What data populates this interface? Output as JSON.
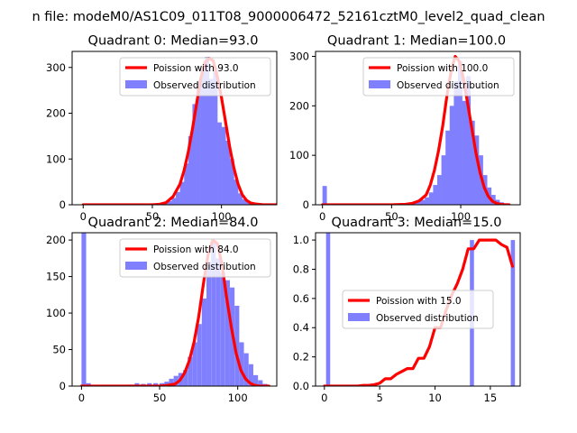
{
  "figure": {
    "suptitle": "n file: modeM0/AS1C09_011T08_9000006472_52161cztM0_level2_quad_clean"
  },
  "colors": {
    "poisson": "#ff0000",
    "observed": "#8080ff",
    "axes": "#000000"
  },
  "chart_data": [
    {
      "type": "bar",
      "title": "Quadrant 0: Median=93.0",
      "xlim": [
        -8,
        140
      ],
      "ylim": [
        0,
        335
      ],
      "xticks": [
        0,
        50,
        100
      ],
      "yticks": [
        0,
        100,
        200,
        300
      ],
      "legend": [
        "Poission with 93.0",
        "Observed distribution"
      ],
      "legend_placement": "top-right",
      "hist_bin_width": 3,
      "hist": {
        "x": [
          40,
          43,
          46,
          49,
          52,
          55,
          58,
          61,
          64,
          67,
          70,
          73,
          76,
          79,
          82,
          85,
          88,
          91,
          94,
          97,
          100,
          103,
          106,
          109,
          112,
          115,
          118,
          121,
          124
        ],
        "y": [
          1,
          1,
          1,
          1,
          2,
          3,
          5,
          8,
          15,
          28,
          50,
          90,
          150,
          220,
          270,
          300,
          323,
          275,
          300,
          180,
          170,
          140,
          100,
          55,
          25,
          12,
          6,
          3,
          1
        ]
      },
      "series": [
        {
          "name": "Poission with 93.0",
          "x": [
            0,
            40,
            50,
            55,
            60,
            65,
            70,
            73,
            76,
            79,
            82,
            85,
            88,
            91,
            94,
            97,
            100,
            103,
            106,
            109,
            112,
            115,
            118,
            121,
            124,
            127,
            130,
            140
          ],
          "y": [
            0,
            0,
            0,
            1,
            5,
            18,
            45,
            75,
            115,
            165,
            220,
            275,
            310,
            320,
            315,
            280,
            235,
            180,
            125,
            80,
            45,
            22,
            10,
            4,
            2,
            1,
            0,
            0
          ]
        }
      ]
    },
    {
      "type": "bar",
      "title": "Quadrant 1: Median=100.0",
      "xlim": [
        -5,
        143
      ],
      "ylim": [
        0,
        310
      ],
      "xticks": [
        0,
        50,
        100
      ],
      "yticks": [
        0,
        100,
        200,
        300
      ],
      "legend": [
        "Poission with 100.0",
        "Observed distribution"
      ],
      "legend_placement": "top-right",
      "hist_bin_width": 3,
      "hist": {
        "x": [
          0,
          50,
          53,
          56,
          59,
          62,
          65,
          68,
          71,
          74,
          77,
          80,
          83,
          86,
          89,
          92,
          95,
          98,
          101,
          104,
          107,
          110,
          113,
          116,
          119,
          122,
          125,
          128,
          131,
          134
        ],
        "y": [
          38,
          1,
          1,
          1,
          2,
          3,
          5,
          8,
          10,
          15,
          25,
          40,
          60,
          100,
          150,
          200,
          250,
          290,
          210,
          260,
          170,
          140,
          100,
          60,
          35,
          20,
          10,
          5,
          3,
          1
        ]
      },
      "series": [
        {
          "name": "Poission with 100.0",
          "x": [
            0,
            50,
            60,
            65,
            70,
            75,
            78,
            81,
            84,
            87,
            90,
            93,
            96,
            99,
            102,
            105,
            108,
            111,
            114,
            117,
            120,
            123,
            126,
            129,
            132,
            135
          ],
          "y": [
            0,
            0,
            1,
            3,
            8,
            20,
            40,
            70,
            110,
            160,
            220,
            270,
            300,
            290,
            255,
            205,
            155,
            105,
            65,
            35,
            17,
            7,
            3,
            1,
            0,
            0
          ]
        }
      ]
    },
    {
      "type": "bar",
      "title": "Quadrant 2: Median=84.0",
      "xlim": [
        -6,
        125
      ],
      "ylim": [
        0,
        210
      ],
      "xticks": [
        0,
        50,
        100
      ],
      "yticks": [
        0,
        50,
        100,
        150,
        200
      ],
      "legend": [
        "Poission with 84.0",
        "Observed distribution"
      ],
      "legend_placement": "top-right",
      "hist_bin_width": 2.8,
      "hist": {
        "x": [
          0,
          3,
          30,
          34,
          38,
          42,
          46,
          50,
          53,
          56,
          59,
          62,
          65,
          68,
          71,
          74,
          77,
          80,
          83,
          86,
          89,
          92,
          95,
          98,
          101,
          104,
          107,
          110,
          113,
          116
        ],
        "y": [
          210,
          4,
          2,
          4,
          3,
          4,
          4,
          4,
          6,
          10,
          14,
          18,
          22,
          40,
          60,
          85,
          120,
          170,
          200,
          175,
          155,
          145,
          135,
          110,
          60,
          45,
          30,
          15,
          8,
          3
        ]
      },
      "series": [
        {
          "name": "Poission with 84.0",
          "x": [
            0,
            40,
            50,
            55,
            60,
            63,
            66,
            69,
            72,
            75,
            78,
            81,
            84,
            87,
            90,
            93,
            96,
            99,
            102,
            105,
            108,
            111,
            114,
            117,
            120
          ],
          "y": [
            0,
            0,
            0,
            1,
            3,
            8,
            18,
            35,
            60,
            95,
            140,
            180,
            200,
            195,
            165,
            120,
            80,
            45,
            22,
            10,
            4,
            1,
            0,
            0,
            0
          ]
        }
      ]
    },
    {
      "type": "bar",
      "title": "Quadrant 3: Median=15.0",
      "xlim": [
        -0.8,
        17.7
      ],
      "ylim": [
        0,
        1.05
      ],
      "xticks": [
        0,
        5,
        10,
        15
      ],
      "yticks": [
        0.0,
        0.2,
        0.4,
        0.6,
        0.8,
        1.0
      ],
      "legend": [
        "Poission with 15.0",
        "Observed distribution"
      ],
      "legend_placement": "center",
      "hist_bin_width": 0.35,
      "hist": {
        "x": [
          0.15,
          13.15,
          16.85
        ],
        "y": [
          1.05,
          1.0,
          1.0
        ]
      },
      "series": [
        {
          "name": "Poission with 15.0",
          "x": [
            0,
            3,
            3.5,
            4,
            4.5,
            5,
            5.5,
            6,
            6.5,
            7,
            7.5,
            8,
            8.5,
            9,
            9.5,
            10,
            10.5,
            11,
            11.5,
            12,
            12.5,
            13,
            13.5,
            14,
            14.5,
            15,
            15.5,
            16,
            16.5,
            17
          ],
          "y": [
            0,
            0,
            0.005,
            0.005,
            0.01,
            0.02,
            0.05,
            0.05,
            0.08,
            0.1,
            0.12,
            0.12,
            0.19,
            0.19,
            0.27,
            0.4,
            0.4,
            0.52,
            0.62,
            0.7,
            0.8,
            0.94,
            0.94,
            1.0,
            1.0,
            1.0,
            1.0,
            0.97,
            0.95,
            0.82
          ]
        }
      ]
    }
  ]
}
